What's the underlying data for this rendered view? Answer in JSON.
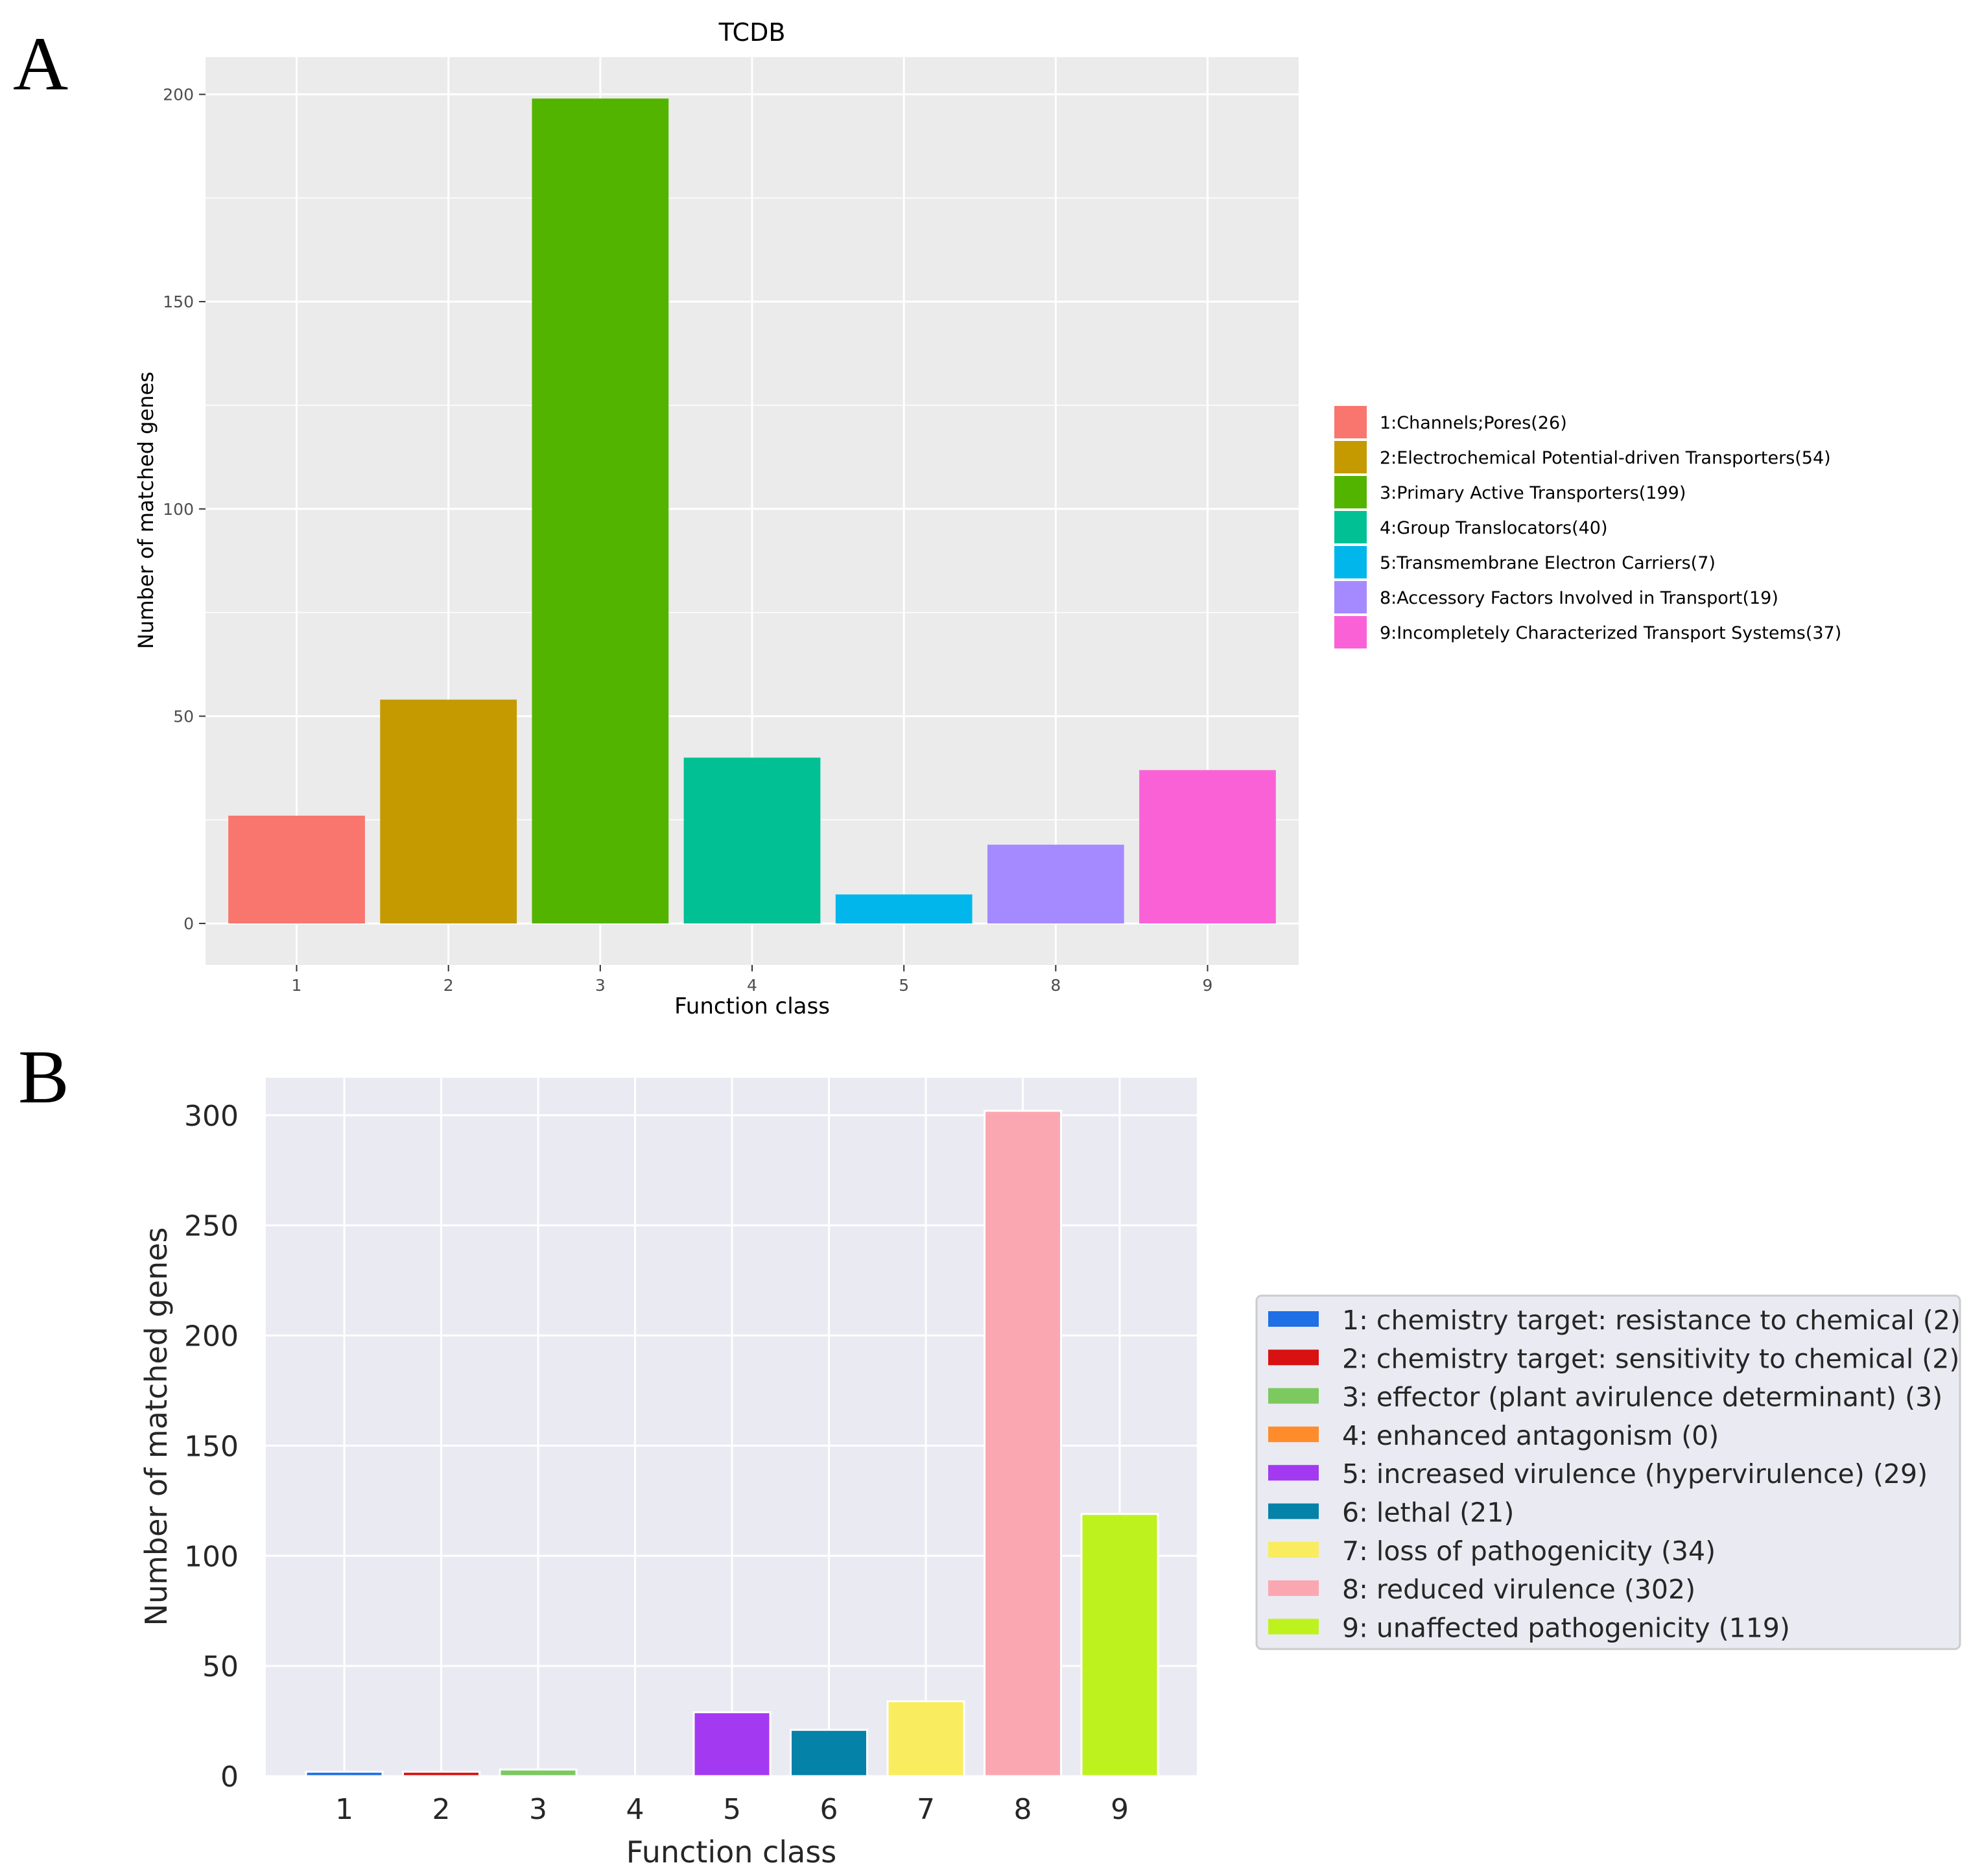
{
  "chart_data": [
    {
      "panel": "A",
      "type": "bar",
      "title": "TCDB",
      "xlabel": "Function class",
      "ylabel": "Number of matched genes",
      "categories": [
        "1",
        "2",
        "3",
        "4",
        "5",
        "8",
        "9"
      ],
      "values": [
        26,
        54,
        199,
        40,
        7,
        19,
        37
      ],
      "colors": [
        "#F8766D",
        "#C49A00",
        "#53B400",
        "#00C094",
        "#00B6EB",
        "#A58AFF",
        "#FB61D7"
      ],
      "yticks": [
        "0",
        "50",
        "100",
        "150",
        "200"
      ],
      "ylim": [
        -10,
        209
      ],
      "legend_position": "right",
      "legend": [
        "1:Channels;Pores(26)",
        "2:Electrochemical Potential-driven Transporters(54)",
        "3:Primary Active Transporters(199)",
        "4:Group Translocators(40)",
        "5:Transmembrane Electron Carriers(7)",
        "8:Accessory Factors Involved in Transport(19)",
        "9:Incompletely Characterized Transport Systems(37)"
      ],
      "grid": true
    },
    {
      "panel": "B",
      "type": "bar",
      "title": "",
      "xlabel": "Function class",
      "ylabel": "Number of matched genes",
      "categories": [
        "1",
        "2",
        "3",
        "4",
        "5",
        "6",
        "7",
        "8",
        "9"
      ],
      "values": [
        2,
        2,
        3,
        0,
        29,
        21,
        34,
        302,
        119
      ],
      "colors": [
        "#1F6FE5",
        "#D81111",
        "#7BC95F",
        "#FF8C2A",
        "#A33AF2",
        "#0582A8",
        "#F9EC5F",
        "#FBA7B1",
        "#BEF21E"
      ],
      "yticks": [
        "0",
        "50",
        "100",
        "150",
        "200",
        "250",
        "300"
      ],
      "ylim": [
        0,
        317
      ],
      "legend_position": "right",
      "legend": [
        "1: chemistry target: resistance to chemical (2)",
        "2: chemistry target: sensitivity to chemical (2)",
        "3: effector (plant avirulence determinant) (3)",
        "4: enhanced antagonism (0)",
        "5: increased virulence (hypervirulence) (29)",
        "6: lethal (21)",
        "7: loss of pathogenicity (34)",
        "8: reduced virulence (302)",
        "9: unaffected pathogenicity (119)"
      ],
      "grid": true
    }
  ],
  "panel_labels": [
    "A",
    "B"
  ]
}
